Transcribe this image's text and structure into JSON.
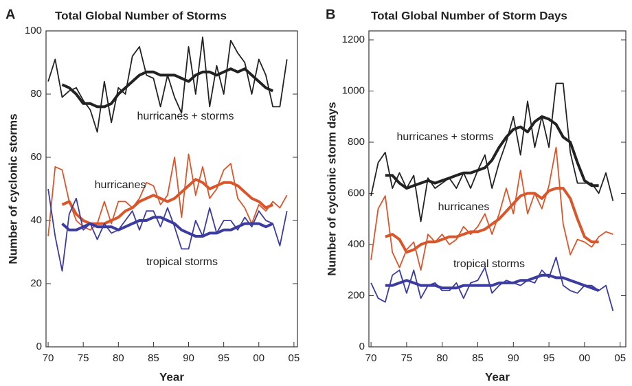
{
  "chart_data": [
    {
      "type": "line",
      "panel": "A",
      "title": "Total Global Number of Storms",
      "x_label": "Year",
      "y_label": "Number of cyclonic storms",
      "x": [
        1970,
        1971,
        1972,
        1973,
        1974,
        1975,
        1976,
        1977,
        1978,
        1979,
        1980,
        1981,
        1982,
        1983,
        1984,
        1985,
        1986,
        1987,
        1988,
        1989,
        1990,
        1991,
        1992,
        1993,
        1994,
        1995,
        1996,
        1997,
        1998,
        1999,
        2000,
        2001,
        2002,
        2003,
        2004
      ],
      "xlim": [
        1969.7,
        2005.5
      ],
      "xticks": [
        {
          "value": 1970,
          "label": "70"
        },
        {
          "value": 1975,
          "label": "75"
        },
        {
          "value": 1980,
          "label": "80"
        },
        {
          "value": 1985,
          "label": "85"
        },
        {
          "value": 1990,
          "label": "90"
        },
        {
          "value": 1995,
          "label": "95"
        },
        {
          "value": 2000,
          "label": "00"
        },
        {
          "value": 2005,
          "label": "05"
        }
      ],
      "ylim": [
        0,
        100
      ],
      "yticks": [
        0,
        20,
        40,
        60,
        80,
        100
      ],
      "series": [
        {
          "name": "hurricanes + storms",
          "color": "#222222",
          "values": [
            84,
            91,
            79,
            81,
            82,
            78,
            75,
            68,
            84,
            71,
            82,
            80,
            92,
            95,
            86,
            85,
            76,
            86,
            79,
            74,
            95,
            80,
            98,
            76,
            89,
            80,
            97,
            93,
            90,
            80,
            91,
            86,
            76,
            76,
            91
          ],
          "smoothed": [
            null,
            null,
            83,
            82,
            80,
            77,
            77,
            76,
            76,
            77,
            80,
            82,
            84,
            86,
            87,
            87,
            86,
            86,
            86,
            85,
            84,
            86,
            87,
            87,
            86,
            87,
            88,
            87,
            88,
            86,
            84,
            82,
            81,
            null,
            null
          ]
        },
        {
          "name": "hurricanes",
          "color": "#d9562b",
          "values": [
            35,
            57,
            56,
            46,
            40,
            38,
            37,
            39,
            46,
            39,
            46,
            46,
            44,
            47,
            52,
            51,
            45,
            48,
            60,
            41,
            61,
            48,
            57,
            47,
            50,
            56,
            58,
            47,
            44,
            39,
            45,
            43,
            46,
            44,
            48
          ],
          "smoothed": [
            null,
            null,
            45,
            46,
            42,
            40,
            39,
            39,
            39,
            40,
            41,
            43,
            44,
            46,
            47,
            48,
            47,
            46,
            47,
            49,
            51,
            53,
            52,
            50,
            51,
            52,
            52,
            51,
            49,
            47,
            46,
            44,
            45,
            null,
            null
          ]
        },
        {
          "name": "tropical storms",
          "color": "#3b3ba0",
          "values": [
            50,
            35,
            24,
            42,
            47,
            37,
            39,
            34,
            39,
            36,
            37,
            40,
            43,
            37,
            43,
            43,
            38,
            44,
            38,
            31,
            31,
            40,
            35,
            44,
            36,
            40,
            40,
            37,
            41,
            38,
            43,
            40,
            39,
            32,
            43
          ],
          "smoothed": [
            null,
            null,
            39,
            37,
            37,
            38,
            39,
            38,
            38,
            38,
            37,
            38,
            39,
            40,
            40,
            41,
            41,
            40,
            39,
            37,
            36,
            35,
            35,
            36,
            36,
            37,
            37,
            38,
            39,
            39,
            39,
            38,
            39,
            null,
            null
          ]
        }
      ]
    },
    {
      "type": "line",
      "panel": "B",
      "title": "Total Global Number of Storm Days",
      "x_label": "Year",
      "y_label": "Number of cyclonic storm days",
      "x": [
        1970,
        1971,
        1972,
        1973,
        1974,
        1975,
        1976,
        1977,
        1978,
        1979,
        1980,
        1981,
        1982,
        1983,
        1984,
        1985,
        1986,
        1987,
        1988,
        1989,
        1990,
        1991,
        1992,
        1993,
        1994,
        1995,
        1996,
        1997,
        1998,
        1999,
        2000,
        2001,
        2002,
        2003,
        2004
      ],
      "xlim": [
        1969.7,
        2005.8
      ],
      "xticks": [
        {
          "value": 1970,
          "label": "70"
        },
        {
          "value": 1975,
          "label": "75"
        },
        {
          "value": 1980,
          "label": "80"
        },
        {
          "value": 1985,
          "label": "85"
        },
        {
          "value": 1990,
          "label": "90"
        },
        {
          "value": 1995,
          "label": "95"
        },
        {
          "value": 2000,
          "label": "00"
        },
        {
          "value": 2005,
          "label": "05"
        }
      ],
      "ylim": [
        0,
        1235
      ],
      "yticks": [
        0,
        200,
        400,
        600,
        800,
        1000,
        1200
      ],
      "series": [
        {
          "name": "hurricanes + storms",
          "color": "#222222",
          "values": [
            590,
            720,
            760,
            620,
            680,
            620,
            670,
            490,
            660,
            620,
            640,
            660,
            620,
            680,
            620,
            690,
            750,
            620,
            720,
            800,
            900,
            750,
            960,
            780,
            900,
            780,
            1030,
            1030,
            760,
            640,
            640,
            640,
            600,
            680,
            570
          ],
          "smoothed": [
            null,
            null,
            670,
            670,
            640,
            620,
            630,
            640,
            650,
            640,
            650,
            660,
            670,
            680,
            680,
            690,
            700,
            730,
            780,
            820,
            850,
            860,
            840,
            880,
            900,
            890,
            870,
            820,
            800,
            720,
            650,
            630,
            630,
            null,
            null
          ]
        },
        {
          "name": "hurricanes",
          "color": "#d9562b",
          "values": [
            340,
            540,
            590,
            370,
            310,
            380,
            410,
            300,
            440,
            410,
            440,
            400,
            420,
            470,
            440,
            470,
            520,
            440,
            520,
            620,
            520,
            690,
            520,
            600,
            540,
            630,
            780,
            480,
            360,
            420,
            410,
            390,
            430,
            450,
            440
          ],
          "smoothed": [
            null,
            null,
            430,
            440,
            420,
            370,
            380,
            400,
            410,
            410,
            420,
            430,
            430,
            440,
            450,
            450,
            460,
            480,
            500,
            530,
            560,
            590,
            600,
            600,
            580,
            610,
            620,
            620,
            580,
            500,
            430,
            410,
            410,
            null,
            null
          ]
        },
        {
          "name": "tropical storms",
          "color": "#3b3ba0",
          "values": [
            250,
            190,
            175,
            280,
            300,
            210,
            300,
            190,
            240,
            250,
            220,
            220,
            250,
            190,
            250,
            260,
            310,
            210,
            240,
            260,
            250,
            240,
            260,
            250,
            300,
            270,
            350,
            240,
            220,
            210,
            240,
            240,
            220,
            240,
            140
          ],
          "smoothed": [
            null,
            null,
            240,
            240,
            250,
            260,
            250,
            240,
            240,
            240,
            230,
            230,
            230,
            240,
            240,
            240,
            240,
            240,
            250,
            250,
            250,
            260,
            260,
            270,
            280,
            280,
            270,
            270,
            260,
            250,
            240,
            230,
            220,
            null,
            null
          ]
        }
      ]
    }
  ]
}
